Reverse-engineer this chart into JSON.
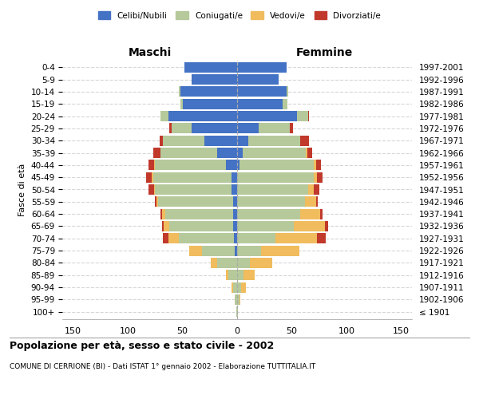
{
  "age_groups": [
    "100+",
    "95-99",
    "90-94",
    "85-89",
    "80-84",
    "75-79",
    "70-74",
    "65-69",
    "60-64",
    "55-59",
    "50-54",
    "45-49",
    "40-44",
    "35-39",
    "30-34",
    "25-29",
    "20-24",
    "15-19",
    "10-14",
    "5-9",
    "0-4"
  ],
  "birth_years": [
    "≤ 1901",
    "1902-1906",
    "1907-1911",
    "1912-1916",
    "1917-1921",
    "1922-1926",
    "1927-1931",
    "1932-1936",
    "1937-1941",
    "1942-1946",
    "1947-1951",
    "1952-1956",
    "1957-1961",
    "1962-1966",
    "1967-1971",
    "1972-1976",
    "1977-1981",
    "1982-1986",
    "1987-1991",
    "1992-1996",
    "1997-2001"
  ],
  "male": {
    "celibi": [
      0,
      0,
      0,
      0,
      0,
      2,
      3,
      4,
      4,
      4,
      5,
      5,
      10,
      18,
      30,
      42,
      63,
      50,
      52,
      42,
      48
    ],
    "coniugati": [
      1,
      2,
      4,
      8,
      18,
      30,
      50,
      58,
      62,
      68,
      70,
      72,
      65,
      52,
      38,
      18,
      7,
      2,
      1,
      0,
      0
    ],
    "vedovi": [
      0,
      0,
      1,
      2,
      6,
      12,
      10,
      5,
      3,
      2,
      1,
      1,
      1,
      0,
      0,
      0,
      0,
      0,
      0,
      0,
      0
    ],
    "divorziati": [
      0,
      0,
      0,
      0,
      0,
      0,
      5,
      2,
      1,
      1,
      5,
      5,
      5,
      7,
      3,
      2,
      0,
      0,
      0,
      0,
      0
    ]
  },
  "female": {
    "nubili": [
      0,
      0,
      0,
      0,
      0,
      0,
      0,
      0,
      0,
      0,
      0,
      0,
      2,
      5,
      10,
      20,
      55,
      42,
      45,
      38,
      45
    ],
    "coniugate": [
      1,
      2,
      4,
      6,
      12,
      22,
      35,
      52,
      58,
      62,
      65,
      70,
      68,
      58,
      48,
      28,
      10,
      4,
      2,
      0,
      0
    ],
    "vedove": [
      0,
      1,
      4,
      10,
      20,
      35,
      38,
      28,
      18,
      10,
      5,
      3,
      2,
      1,
      0,
      0,
      0,
      0,
      0,
      0,
      0
    ],
    "divorziate": [
      0,
      0,
      0,
      0,
      0,
      0,
      8,
      3,
      2,
      2,
      5,
      5,
      5,
      5,
      8,
      3,
      1,
      0,
      0,
      0,
      0
    ]
  },
  "colors": {
    "celibi": "#4472c4",
    "coniugati": "#b5c99a",
    "vedovi": "#f0bc5e",
    "divorziati": "#c0392b"
  },
  "xlim": 160,
  "title": "Popolazione per età, sesso e stato civile - 2002",
  "subtitle": "COMUNE DI CERRIONE (BI) - Dati ISTAT 1° gennaio 2002 - Elaborazione TUTTITALIA.IT",
  "ylabel_left": "Fasce di età",
  "xlabel_left": "Maschi",
  "xlabel_right": "Femmine",
  "legend_labels": [
    "Celibi/Nubili",
    "Coniugati/e",
    "Vedovi/e",
    "Divorziati/e"
  ]
}
